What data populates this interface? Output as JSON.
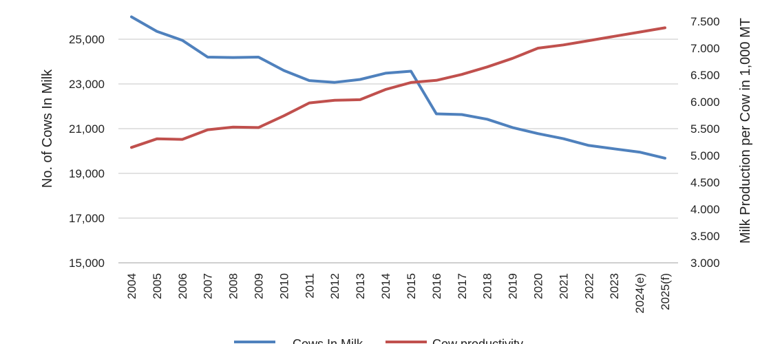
{
  "chart_data": {
    "type": "line",
    "categories": [
      "2004",
      "2005",
      "2006",
      "2007",
      "2008",
      "2009",
      "2010",
      "2011",
      "2012",
      "2013",
      "2014",
      "2015",
      "2016",
      "2017",
      "2018",
      "2019",
      "2020",
      "2021",
      "2022",
      "2023",
      "2024(e)",
      "2025(f)"
    ],
    "y_left": {
      "label": "No. of Cows In Milk",
      "range": [
        15000,
        27000
      ],
      "ticks": [
        "15,000",
        "17,000",
        "19,000",
        "21,000",
        "23,000",
        "25,000"
      ],
      "tick_values": [
        15000,
        17000,
        19000,
        21000,
        23000,
        25000
      ]
    },
    "y_right": {
      "label": "Milk Production per Cow in 1,000 MT",
      "range": [
        3.0,
        7.8
      ],
      "ticks": [
        "3.000",
        "3.500",
        "4.000",
        "4.500",
        "5.000",
        "5.500",
        "6.000",
        "6.500",
        "7.000",
        "7.500"
      ],
      "tick_values": [
        3.0,
        3.5,
        4.0,
        4.5,
        5.0,
        5.5,
        6.0,
        6.5,
        7.0,
        7.5
      ]
    },
    "series": [
      {
        "name": "Cows In Milk",
        "axis": "left",
        "color": "#4f81bd",
        "values": [
          26000,
          25350,
          24950,
          24200,
          24180,
          24200,
          23600,
          23150,
          23070,
          23200,
          23480,
          23570,
          21660,
          21630,
          21420,
          21050,
          20780,
          20550,
          20250,
          20100,
          19950,
          19680
        ]
      },
      {
        "name": "Cow productivity",
        "axis": "right",
        "color": "#c0504d",
        "values": [
          5.15,
          5.31,
          5.3,
          5.48,
          5.53,
          5.52,
          5.74,
          5.98,
          6.03,
          6.04,
          6.23,
          6.36,
          6.4,
          6.51,
          6.65,
          6.81,
          7.0,
          7.06,
          7.14,
          7.22,
          7.3,
          7.38
        ]
      }
    ],
    "grid": true,
    "legend_position": "bottom"
  },
  "legend": {
    "items": [
      {
        "label": "Cows In Milk",
        "color": "#4f81bd"
      },
      {
        "label": "Cow productivity",
        "color": "#c0504d"
      }
    ]
  }
}
